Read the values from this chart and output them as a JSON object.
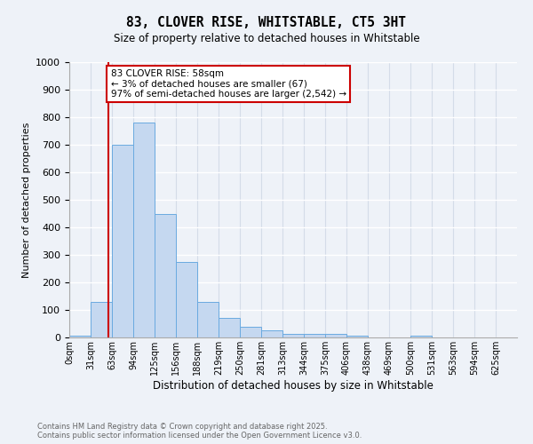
{
  "title1": "83, CLOVER RISE, WHITSTABLE, CT5 3HT",
  "title2": "Size of property relative to detached houses in Whitstable",
  "xlabel": "Distribution of detached houses by size in Whitstable",
  "ylabel": "Number of detached properties",
  "bar_labels": [
    "0sqm",
    "31sqm",
    "63sqm",
    "94sqm",
    "125sqm",
    "156sqm",
    "188sqm",
    "219sqm",
    "250sqm",
    "281sqm",
    "313sqm",
    "344sqm",
    "375sqm",
    "406sqm",
    "438sqm",
    "469sqm",
    "500sqm",
    "531sqm",
    "563sqm",
    "594sqm",
    "625sqm"
  ],
  "bar_values": [
    5,
    130,
    700,
    780,
    450,
    275,
    130,
    70,
    38,
    25,
    12,
    12,
    12,
    5,
    0,
    0,
    5,
    0,
    0,
    0,
    0
  ],
  "bar_color": "#c5d8f0",
  "bar_edge_color": "#6aaae0",
  "bg_color": "#eef2f8",
  "grid_color": "#ffffff",
  "annotation_text": "83 CLOVER RISE: 58sqm\n← 3% of detached houses are smaller (67)\n97% of semi-detached houses are larger (2,542) →",
  "annotation_box_color": "#ffffff",
  "annotation_box_edge": "#cc0000",
  "ylim": [
    0,
    1000
  ],
  "footnote1": "Contains HM Land Registry data © Crown copyright and database right 2025.",
  "footnote2": "Contains public sector information licensed under the Open Government Licence v3.0."
}
